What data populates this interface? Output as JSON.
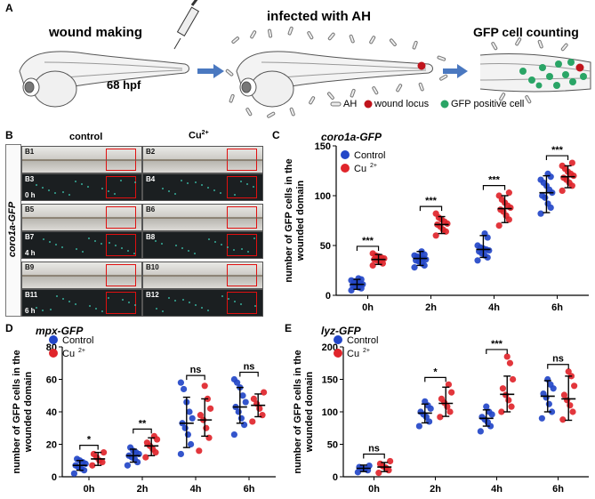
{
  "panel_a": {
    "label": "A",
    "step1_title": "wound  making",
    "step1_age": "68 hpf",
    "step2_title": "infected with AH",
    "step3_title": "GFP cell counting",
    "legend": [
      {
        "symbol": "rod",
        "text": "AH"
      },
      {
        "symbol": "red-dot",
        "text": "wound locus"
      },
      {
        "symbol": "green-dot",
        "text": "GFP positive cell"
      }
    ]
  },
  "panel_b": {
    "label": "B",
    "col_control": "control",
    "col_cu": "Cu",
    "col_cu_sup": "2+",
    "row_label": "coro1a-GFP",
    "lanes": [
      {
        "code": "B1",
        "type": "bf",
        "time": ""
      },
      {
        "code": "B2",
        "type": "bf",
        "time": ""
      },
      {
        "code": "B3",
        "type": "fl",
        "time": "0 h"
      },
      {
        "code": "B4",
        "type": "fl",
        "time": ""
      },
      {
        "code": "B5",
        "type": "bf",
        "time": ""
      },
      {
        "code": "B6",
        "type": "bf",
        "time": ""
      },
      {
        "code": "B7",
        "type": "fl",
        "time": "4 h"
      },
      {
        "code": "B8",
        "type": "fl",
        "time": ""
      },
      {
        "code": "B9",
        "type": "bf",
        "time": ""
      },
      {
        "code": "B10",
        "type": "bf",
        "time": ""
      },
      {
        "code": "B11",
        "type": "fl",
        "time": "6 h"
      },
      {
        "code": "B12",
        "type": "fl",
        "time": ""
      }
    ]
  },
  "chart_data": [
    {
      "panel": "C",
      "type": "scatter",
      "title": "coro1a-GFP",
      "ylabel_lines": [
        "number of GFP cells in the",
        "wounded domain"
      ],
      "categories": [
        "0h",
        "2h",
        "4h",
        "6h"
      ],
      "ylim": [
        0,
        150
      ],
      "yticks": [
        0,
        50,
        100,
        150
      ],
      "legend": [
        "Control",
        "Cu2+"
      ],
      "series": [
        {
          "name": "Control",
          "color": "#2346c8",
          "mean": [
            11,
            37,
            46,
            103
          ],
          "sd_low": [
            6,
            30,
            38,
            83
          ],
          "sd_high": [
            16,
            44,
            60,
            120
          ],
          "points": [
            [
              5,
              7,
              8,
              9,
              10,
              11,
              12,
              13,
              14,
              15,
              16,
              17
            ],
            [
              28,
              30,
              32,
              34,
              35,
              36,
              37,
              38,
              39,
              40,
              41,
              44
            ],
            [
              35,
              38,
              40,
              42,
              44,
              45,
              46,
              47,
              48,
              50,
              58,
              62
            ],
            [
              82,
              88,
              92,
              98,
              100,
              103,
              106,
              110,
              113,
              116,
              119,
              122
            ]
          ]
        },
        {
          "name": "Cu2+",
          "color": "#e0252b",
          "mean": [
            36,
            71,
            87,
            119
          ],
          "sd_low": [
            31,
            62,
            73,
            108
          ],
          "sd_high": [
            41,
            79,
            100,
            130
          ],
          "points": [
            [
              30,
              32,
              34,
              35,
              36,
              37,
              38,
              39,
              40,
              42
            ],
            [
              60,
              64,
              66,
              69,
              71,
              72,
              74,
              76,
              78,
              82
            ],
            [
              70,
              76,
              80,
              84,
              86,
              88,
              90,
              93,
              96,
              100,
              103
            ],
            [
              105,
              110,
              113,
              116,
              118,
              120,
              122,
              124,
              127,
              130,
              133
            ]
          ]
        }
      ],
      "significance": [
        "***",
        "***",
        "***",
        "***"
      ]
    },
    {
      "panel": "D",
      "type": "scatter",
      "title": "mpx-GFP",
      "ylabel_lines": [
        "number of GFP cells in the",
        "wounded domain"
      ],
      "categories": [
        "0h",
        "2h",
        "4h",
        "6h"
      ],
      "ylim": [
        0,
        80
      ],
      "yticks": [
        0,
        20,
        40,
        60,
        80
      ],
      "legend": [
        "Control",
        "Cu2+"
      ],
      "series": [
        {
          "name": "Control",
          "color": "#2346c8",
          "mean": [
            7,
            13,
            33,
            43
          ],
          "sd_low": [
            4,
            9,
            18,
            33
          ],
          "sd_high": [
            10,
            17,
            49,
            55
          ],
          "points": [
            [
              2,
              4,
              5,
              6,
              7,
              8,
              9,
              10,
              11
            ],
            [
              7,
              9,
              11,
              12,
              13,
              14,
              15,
              16,
              18
            ],
            [
              14,
              20,
              26,
              30,
              33,
              36,
              40,
              46,
              54,
              58
            ],
            [
              26,
              32,
              36,
              40,
              43,
              46,
              50,
              55,
              58,
              60
            ]
          ]
        },
        {
          "name": "Cu2+",
          "color": "#e0252b",
          "mean": [
            11,
            19,
            35,
            44
          ],
          "sd_low": [
            7,
            13,
            25,
            37
          ],
          "sd_high": [
            15,
            24,
            48,
            51
          ],
          "points": [
            [
              7,
              9,
              10,
              12,
              14,
              15
            ],
            [
              12,
              15,
              17,
              19,
              21,
              23,
              25
            ],
            [
              16,
              24,
              30,
              35,
              38,
              42,
              48,
              56
            ],
            [
              34,
              38,
              42,
              45,
              48,
              52
            ]
          ]
        }
      ],
      "significance": [
        "*",
        "**",
        "ns",
        "ns"
      ]
    },
    {
      "panel": "E",
      "type": "scatter",
      "title": "lyz-GFP",
      "ylabel_lines": [
        "number of GFP cells in the",
        "wounded domain"
      ],
      "categories": [
        "0h",
        "2h",
        "4h",
        "6h"
      ],
      "ylim": [
        0,
        200
      ],
      "yticks": [
        0,
        50,
        100,
        150,
        200
      ],
      "legend": [
        "Control",
        "Cu2+"
      ],
      "series": [
        {
          "name": "Control",
          "color": "#2346c8",
          "mean": [
            13,
            98,
            90,
            124
          ],
          "sd_low": [
            8,
            83,
            78,
            100
          ],
          "sd_high": [
            18,
            112,
            103,
            148
          ],
          "points": [
            [
              7,
              10,
              12,
              13,
              15,
              17
            ],
            [
              78,
              85,
              92,
              96,
              100,
              105,
              110,
              116
            ],
            [
              70,
              78,
              84,
              88,
              92,
              96,
              100,
              108
            ],
            [
              90,
              100,
              112,
              122,
              128,
              136,
              142,
              150
            ]
          ]
        },
        {
          "name": "Cu2+",
          "color": "#e0252b",
          "mean": [
            15,
            113,
            127,
            120
          ],
          "sd_low": [
            8,
            93,
            100,
            87
          ],
          "sd_high": [
            22,
            138,
            155,
            155
          ],
          "points": [
            [
              6,
              10,
              14,
              16,
              20,
              24
            ],
            [
              92,
              100,
              108,
              114,
              120,
              130,
              142
            ],
            [
              100,
              108,
              118,
              126,
              136,
              150,
              175,
              185
            ],
            [
              88,
              100,
              110,
              118,
              126,
              140,
              155,
              162
            ]
          ]
        }
      ],
      "significance": [
        "ns",
        "*",
        "***",
        "ns"
      ]
    }
  ]
}
